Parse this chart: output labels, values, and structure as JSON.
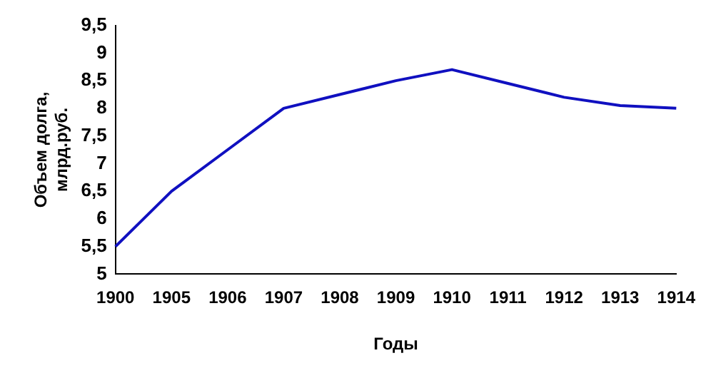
{
  "chart_data": {
    "type": "line",
    "xlabel": "Годы",
    "ylabel": "Объем долга,\nмлрд.руб.",
    "categories": [
      "1900",
      "1905",
      "1906",
      "1907",
      "1908",
      "1909",
      "1910",
      "1911",
      "1912",
      "1913",
      "1914"
    ],
    "series": [
      {
        "color": "#1010c0",
        "values": [
          5.5,
          6.5,
          7.25,
          8.0,
          8.25,
          8.5,
          8.7,
          8.45,
          8.2,
          8.05,
          8.0
        ]
      }
    ],
    "ylim": [
      5,
      9.5
    ],
    "yticks": [
      5,
      {
        "value": 5.5,
        "label": "5,5"
      },
      6,
      {
        "value": 6.5,
        "label": "6,5"
      },
      7,
      {
        "value": 7.5,
        "label": "7,5"
      },
      8,
      {
        "value": 8.5,
        "label": "8,5"
      },
      9,
      {
        "value": 9.5,
        "label": "9,5"
      }
    ],
    "grid": false,
    "legend": false,
    "marker": "none",
    "line_style": "solid"
  }
}
